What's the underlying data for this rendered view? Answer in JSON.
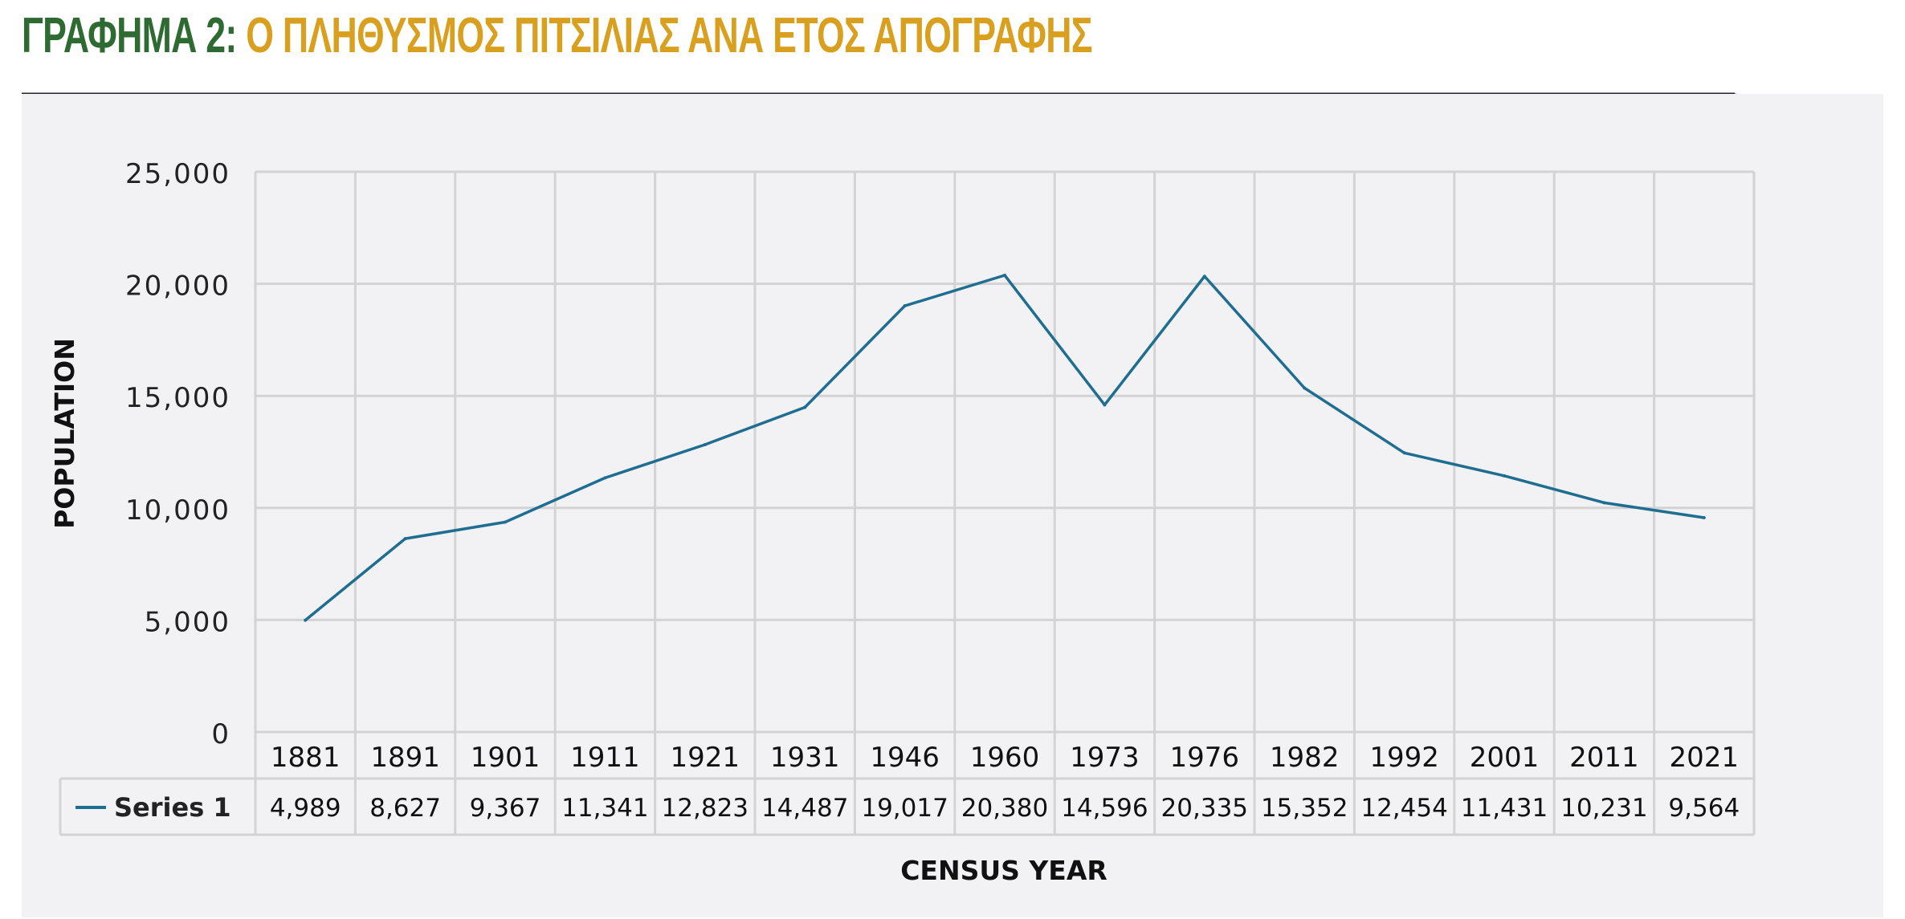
{
  "title": {
    "prefix": "ΓΡΑΦΗΜΑ 2:",
    "main": "Ο ΠΛΗΘΥΣΜΟΣ ΠΙΤΣΙΛΙΑΣ ΑΝΑ ΕΤΟΣ ΑΠΟΓΡΑΦΗΣ"
  },
  "colors": {
    "title_prefix": "#2e6b32",
    "title_main": "#d9a020",
    "series_line": "#1f6e91",
    "grid": "#d3d3d3",
    "panel_bg": "#f2f2f4"
  },
  "chart_data": {
    "type": "line",
    "categories": [
      "1881",
      "1891",
      "1901",
      "1911",
      "1921",
      "1931",
      "1946",
      "1960",
      "1973",
      "1976",
      "1982",
      "1992",
      "2001",
      "2011",
      "2021"
    ],
    "series": [
      {
        "name": "Series 1",
        "values": [
          4989,
          8627,
          9367,
          11341,
          12823,
          14487,
          19017,
          20380,
          14596,
          20335,
          15352,
          12454,
          11431,
          10231,
          9564
        ],
        "labels": [
          "4,989",
          "8,627",
          "9,367",
          "11,341",
          "12,823",
          "14,487",
          "19,017",
          "20,380",
          "14,596",
          "20,335",
          "15,352",
          "12,454",
          "11,431",
          "10,231",
          "9,564"
        ]
      }
    ],
    "ylabel": "POPULATION",
    "xlabel": "CENSUS YEAR",
    "ylim": [
      0,
      25000
    ],
    "yticks": [
      0,
      5000,
      10000,
      15000,
      20000,
      25000
    ],
    "ytick_labels": [
      "0",
      "5,000",
      "10,000",
      "15,000",
      "20,000",
      "25,000"
    ],
    "grid": true,
    "data_table": true,
    "legend_placement": "data-table"
  }
}
